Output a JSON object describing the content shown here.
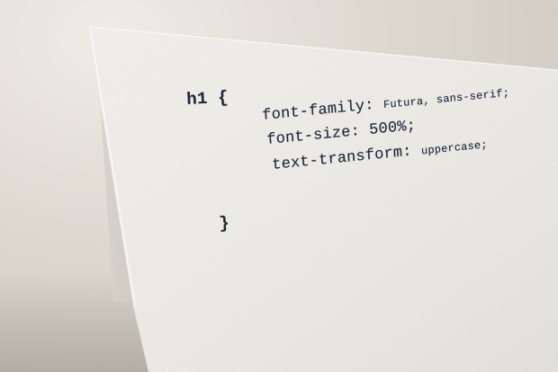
{
  "code": {
    "line1": "h1 {",
    "line2_prop": "font-family:",
    "line2_value": "Futura, sans-serif;",
    "line3_prop": "font-size:",
    "line3_value": "500%;",
    "line4_prop": "text-transform:",
    "line4_value": "uppercase;",
    "line5": "}"
  },
  "colors": {
    "ink": "#1e2a3f",
    "paper": "#f3f1ec",
    "background": "#d8d4cc"
  }
}
